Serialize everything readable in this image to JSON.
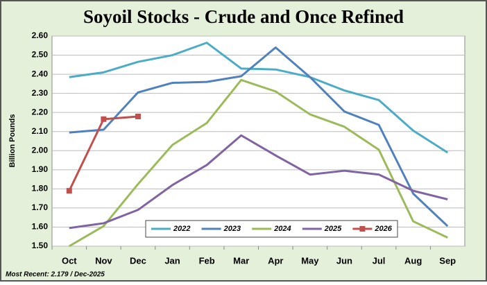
{
  "chart_data": {
    "type": "line",
    "title": "Soyoil Stocks - Crude and Once Refined",
    "y_label": "Billion Pounds",
    "footnote": "Most Recent: 2.179 / Dec-2025",
    "categories": [
      "Oct",
      "Nov",
      "Dec",
      "Jan",
      "Feb",
      "Mar",
      "Apr",
      "May",
      "Jun",
      "Jul",
      "Aug",
      "Sep"
    ],
    "series": [
      {
        "name": "2022",
        "color": "#4bacc6",
        "values": [
          2.385,
          2.41,
          2.465,
          2.5,
          2.565,
          2.43,
          2.425,
          2.385,
          2.315,
          2.265,
          2.105,
          1.99
        ]
      },
      {
        "name": "2023",
        "color": "#4f81bd",
        "values": [
          2.095,
          2.11,
          2.305,
          2.355,
          2.36,
          2.39,
          2.54,
          2.385,
          2.205,
          2.135,
          1.775,
          1.605
        ]
      },
      {
        "name": "2024",
        "color": "#9bbb59",
        "values": [
          1.5,
          1.605,
          1.825,
          2.03,
          2.145,
          2.37,
          2.31,
          2.19,
          2.125,
          2.005,
          1.63,
          1.545
        ]
      },
      {
        "name": "2025",
        "color": "#8064a2",
        "values": [
          1.595,
          1.62,
          1.69,
          1.82,
          1.925,
          2.08,
          1.975,
          1.875,
          1.895,
          1.875,
          1.79,
          1.745
        ]
      },
      {
        "name": "2026",
        "color": "#c0504d",
        "marker": "square",
        "values": [
          1.79,
          2.165,
          2.179,
          null,
          null,
          null,
          null,
          null,
          null,
          null,
          null,
          null
        ]
      }
    ],
    "ylim": [
      1.5,
      2.6
    ],
    "yticks": [
      {
        "value": 1.5,
        "label": "1.50"
      },
      {
        "value": 1.6,
        "label": "1.60"
      },
      {
        "value": 1.7,
        "label": "1.70"
      },
      {
        "value": 1.8,
        "label": "1.80"
      },
      {
        "value": 1.9,
        "label": "1.90"
      },
      {
        "value": 2.0,
        "label": "2.00"
      },
      {
        "value": 2.1,
        "label": "2.10"
      },
      {
        "value": 2.2,
        "label": "2.20"
      },
      {
        "value": 2.3,
        "label": "2.30"
      },
      {
        "value": 2.4,
        "label": "2.40"
      },
      {
        "value": 2.5,
        "label": "2.50"
      },
      {
        "value": 2.6,
        "label": "2.60"
      }
    ],
    "grid": true,
    "legend": "bottom"
  }
}
